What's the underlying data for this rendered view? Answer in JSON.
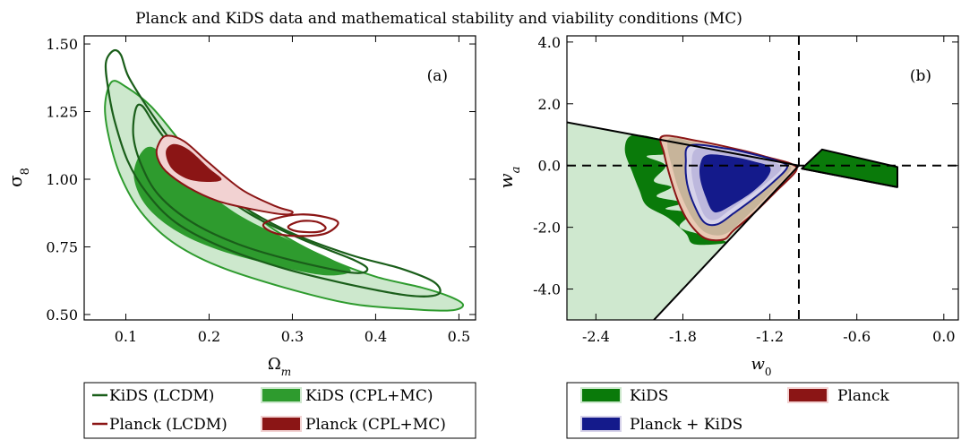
{
  "figure": {
    "title": "Planck and KiDS data and mathematical stability and viability conditions (MC)"
  },
  "colors": {
    "kids_line": "#1a5e1a",
    "kids_fill_light": "#cde8cd",
    "kids_fill_dark": "#2e9b2e",
    "kids_solid": "#0a7a0a",
    "planck_line": "#8b1515",
    "planck_fill_light": "#f2d2d2",
    "planck_fill_dark": "#8b1515",
    "pk_fill_light": "#d7d3ea",
    "pk_fill_dark": "#141a8b",
    "viability_fill": "#cfe8cf"
  },
  "chart_data": [
    {
      "type": "contour",
      "panel_label": "(a)",
      "xlabel": "Ω",
      "xlabel_sub": "m",
      "ylabel": "σ",
      "ylabel_sub": "8",
      "xlim": [
        0.05,
        0.52
      ],
      "ylim": [
        0.48,
        1.53
      ],
      "xticks": [
        0.1,
        0.2,
        0.3,
        0.4,
        0.5
      ],
      "xtick_labels": [
        "0.1",
        "0.2",
        "0.3",
        "0.4",
        "0.5"
      ],
      "yticks": [
        0.5,
        0.75,
        1.0,
        1.25,
        1.5
      ],
      "ytick_labels": [
        "0.50",
        "0.75",
        "1.00",
        "1.25",
        "1.50"
      ],
      "series": [
        {
          "key": "kids_cpl_outer",
          "style": "filled",
          "level": "95%",
          "points": [
            [
              0.083,
              1.36
            ],
            [
              0.101,
              1.34
            ],
            [
              0.13,
              1.27
            ],
            [
              0.16,
              1.16
            ],
            [
              0.19,
              1.04
            ],
            [
              0.23,
              0.93
            ],
            [
              0.28,
              0.81
            ],
            [
              0.34,
              0.71
            ],
            [
              0.4,
              0.64
            ],
            [
              0.455,
              0.6
            ],
            [
              0.49,
              0.565
            ],
            [
              0.505,
              0.535
            ],
            [
              0.49,
              0.515
            ],
            [
              0.44,
              0.52
            ],
            [
              0.37,
              0.54
            ],
            [
              0.29,
              0.6
            ],
            [
              0.21,
              0.68
            ],
            [
              0.155,
              0.77
            ],
            [
              0.118,
              0.88
            ],
            [
              0.094,
              1.01
            ],
            [
              0.08,
              1.15
            ],
            [
              0.075,
              1.27
            ]
          ]
        },
        {
          "key": "kids_cpl_inner",
          "style": "filled",
          "level": "68%",
          "points": [
            [
              0.115,
              1.08
            ],
            [
              0.13,
              1.12
            ],
            [
              0.155,
              1.06
            ],
            [
              0.19,
              0.97
            ],
            [
              0.24,
              0.86
            ],
            [
              0.3,
              0.77
            ],
            [
              0.35,
              0.7
            ],
            [
              0.37,
              0.66
            ],
            [
              0.34,
              0.645
            ],
            [
              0.28,
              0.68
            ],
            [
              0.21,
              0.74
            ],
            [
              0.16,
              0.81
            ],
            [
              0.125,
              0.9
            ],
            [
              0.11,
              1.0
            ]
          ]
        },
        {
          "key": "kids_lcdm_outer",
          "style": "line",
          "level": "95%",
          "points": [
            [
              0.085,
              1.475
            ],
            [
              0.094,
              1.46
            ],
            [
              0.103,
              1.38
            ],
            [
              0.125,
              1.27
            ],
            [
              0.155,
              1.14
            ],
            [
              0.19,
              1.02
            ],
            [
              0.24,
              0.9
            ],
            [
              0.3,
              0.8
            ],
            [
              0.37,
              0.72
            ],
            [
              0.43,
              0.67
            ],
            [
              0.47,
              0.62
            ],
            [
              0.475,
              0.575
            ],
            [
              0.44,
              0.57
            ],
            [
              0.37,
              0.61
            ],
            [
              0.29,
              0.67
            ],
            [
              0.215,
              0.75
            ],
            [
              0.16,
              0.84
            ],
            [
              0.125,
              0.95
            ],
            [
              0.102,
              1.07
            ],
            [
              0.087,
              1.21
            ],
            [
              0.079,
              1.33
            ],
            [
              0.076,
              1.43
            ]
          ]
        },
        {
          "key": "kids_lcdm_inner",
          "style": "line",
          "level": "68%",
          "points": [
            [
              0.112,
              1.26
            ],
            [
              0.12,
              1.27
            ],
            [
              0.135,
              1.2
            ],
            [
              0.16,
              1.1
            ],
            [
              0.2,
              0.98
            ],
            [
              0.25,
              0.87
            ],
            [
              0.31,
              0.78
            ],
            [
              0.375,
              0.7
            ],
            [
              0.39,
              0.665
            ],
            [
              0.37,
              0.655
            ],
            [
              0.3,
              0.7
            ],
            [
              0.235,
              0.76
            ],
            [
              0.18,
              0.84
            ],
            [
              0.14,
              0.94
            ],
            [
              0.119,
              1.05
            ],
            [
              0.109,
              1.16
            ]
          ]
        },
        {
          "key": "planck_cpl_outer",
          "style": "filled",
          "level": "95%",
          "points": [
            [
              0.138,
              1.12
            ],
            [
              0.148,
              1.16
            ],
            [
              0.17,
              1.14
            ],
            [
              0.2,
              1.06
            ],
            [
              0.24,
              0.96
            ],
            [
              0.28,
              0.9
            ],
            [
              0.3,
              0.88
            ],
            [
              0.29,
              0.87
            ],
            [
              0.25,
              0.89
            ],
            [
              0.21,
              0.92
            ],
            [
              0.175,
              0.97
            ],
            [
              0.148,
              1.03
            ],
            [
              0.138,
              1.08
            ]
          ]
        },
        {
          "key": "planck_cpl_inner",
          "style": "filled",
          "level": "68%",
          "points": [
            [
              0.148,
              1.1
            ],
            [
              0.157,
              1.13
            ],
            [
              0.175,
              1.11
            ],
            [
              0.2,
              1.04
            ],
            [
              0.215,
              1.0
            ],
            [
              0.2,
              0.99
            ],
            [
              0.175,
              1.0
            ],
            [
              0.155,
              1.04
            ]
          ]
        },
        {
          "key": "planck_lcdm_outer",
          "style": "line",
          "level": "95%",
          "points": [
            [
              0.265,
              0.83
            ],
            [
              0.28,
              0.855
            ],
            [
              0.31,
              0.87
            ],
            [
              0.34,
              0.86
            ],
            [
              0.355,
              0.838
            ],
            [
              0.34,
              0.8
            ],
            [
              0.31,
              0.79
            ],
            [
              0.28,
              0.8
            ]
          ]
        },
        {
          "key": "planck_lcdm_inner",
          "style": "line",
          "level": "68%",
          "points": [
            [
              0.295,
              0.825
            ],
            [
              0.31,
              0.845
            ],
            [
              0.33,
              0.842
            ],
            [
              0.34,
              0.82
            ],
            [
              0.33,
              0.805
            ],
            [
              0.305,
              0.808
            ]
          ]
        }
      ]
    },
    {
      "type": "contour",
      "panel_label": "(b)",
      "xlabel": "w",
      "xlabel_sub": "0",
      "ylabel": "w",
      "ylabel_sub": "a",
      "xlim": [
        -2.6,
        0.1
      ],
      "ylim": [
        -5.0,
        4.2
      ],
      "xticks": [
        -2.4,
        -1.8,
        -1.2,
        -0.6,
        0.0
      ],
      "xtick_labels": [
        "-2.4",
        "-1.8",
        "-1.2",
        "-0.6",
        "0.0"
      ],
      "yticks": [
        -4.0,
        -2.0,
        0.0,
        2.0,
        4.0
      ],
      "ytick_labels": [
        "-4.0",
        "-2.0",
        "0.0",
        "2.0",
        "4.0"
      ],
      "reference_lines": {
        "vertical_x": -1.0,
        "horizontal_y": 0.0,
        "style": "dashed"
      },
      "series": [
        {
          "key": "viability_region",
          "style": "filled",
          "level": "MC",
          "points": [
            [
              -2.6,
              1.4
            ],
            [
              -1.0,
              0.0
            ],
            [
              -2.0,
              -5.0
            ],
            [
              -2.6,
              -5.0
            ]
          ]
        },
        {
          "key": "kids_wedge",
          "style": "filled",
          "level": "95%",
          "points": [
            [
              -0.98,
              -0.1
            ],
            [
              -0.84,
              0.52
            ],
            [
              -0.32,
              -0.05
            ],
            [
              -0.32,
              -0.7
            ]
          ]
        },
        {
          "key": "kids_left",
          "style": "filled",
          "level": "95%",
          "points": [
            [
              -2.15,
              0.98
            ],
            [
              -1.95,
              0.82
            ],
            [
              -1.9,
              0.4
            ],
            [
              -2.05,
              0.3
            ],
            [
              -1.92,
              0.0
            ],
            [
              -2.0,
              -0.5
            ],
            [
              -1.88,
              -0.7
            ],
            [
              -1.98,
              -1.0
            ],
            [
              -1.8,
              -1.2
            ],
            [
              -1.92,
              -1.4
            ],
            [
              -1.75,
              -1.55
            ],
            [
              -1.82,
              -2.0
            ],
            [
              -1.62,
              -2.3
            ],
            [
              -1.5,
              -2.5
            ],
            [
              -1.72,
              -2.55
            ],
            [
              -1.78,
              -2.2
            ],
            [
              -1.9,
              -1.7
            ],
            [
              -2.05,
              -1.3
            ],
            [
              -2.1,
              -0.8
            ],
            [
              -2.15,
              -0.2
            ],
            [
              -2.2,
              0.5
            ]
          ]
        },
        {
          "key": "planck_cpl_outer",
          "style": "filled",
          "level": "95%",
          "points": [
            [
              -1.94,
              0.95
            ],
            [
              -1.7,
              0.8
            ],
            [
              -1.4,
              0.5
            ],
            [
              -1.2,
              0.25
            ],
            [
              -1.05,
              0.05
            ],
            [
              -1.02,
              -0.18
            ],
            [
              -1.15,
              -0.8
            ],
            [
              -1.3,
              -1.5
            ],
            [
              -1.45,
              -2.1
            ],
            [
              -1.52,
              -2.4
            ],
            [
              -1.65,
              -2.35
            ],
            [
              -1.75,
              -1.9
            ],
            [
              -1.82,
              -1.3
            ],
            [
              -1.88,
              -0.5
            ],
            [
              -1.93,
              0.4
            ]
          ]
        },
        {
          "key": "planck_cpl_inner",
          "style": "filled",
          "level": "68%",
          "points": [
            [
              -1.9,
              0.85
            ],
            [
              -1.7,
              0.72
            ],
            [
              -1.42,
              0.45
            ],
            [
              -1.18,
              0.18
            ],
            [
              -1.06,
              0.0
            ],
            [
              -1.08,
              -0.3
            ],
            [
              -1.2,
              -0.9
            ],
            [
              -1.35,
              -1.6
            ],
            [
              -1.5,
              -2.2
            ],
            [
              -1.63,
              -2.2
            ],
            [
              -1.72,
              -1.8
            ],
            [
              -1.8,
              -1.1
            ],
            [
              -1.86,
              -0.3
            ]
          ]
        },
        {
          "key": "pk_outer",
          "style": "filled",
          "level": "95%",
          "points": [
            [
              -1.75,
              0.65
            ],
            [
              -1.5,
              0.55
            ],
            [
              -1.3,
              0.35
            ],
            [
              -1.15,
              0.15
            ],
            [
              -1.08,
              -0.05
            ],
            [
              -1.18,
              -0.55
            ],
            [
              -1.32,
              -1.1
            ],
            [
              -1.45,
              -1.55
            ],
            [
              -1.56,
              -1.9
            ],
            [
              -1.65,
              -1.85
            ],
            [
              -1.72,
              -1.3
            ],
            [
              -1.77,
              -0.6
            ],
            [
              -1.78,
              0.1
            ]
          ]
        },
        {
          "key": "pk_mid",
          "style": "filled",
          "level": "mid",
          "points": [
            [
              -1.7,
              0.55
            ],
            [
              -1.48,
              0.47
            ],
            [
              -1.3,
              0.3
            ],
            [
              -1.17,
              0.1
            ],
            [
              -1.12,
              -0.1
            ],
            [
              -1.22,
              -0.55
            ],
            [
              -1.36,
              -1.05
            ],
            [
              -1.48,
              -1.45
            ],
            [
              -1.57,
              -1.75
            ],
            [
              -1.64,
              -1.68
            ],
            [
              -1.69,
              -1.2
            ],
            [
              -1.73,
              -0.55
            ],
            [
              -1.74,
              0.05
            ]
          ]
        },
        {
          "key": "pk_inner",
          "style": "filled",
          "level": "68%",
          "points": [
            [
              -1.63,
              0.35
            ],
            [
              -1.45,
              0.28
            ],
            [
              -1.3,
              0.12
            ],
            [
              -1.2,
              -0.05
            ],
            [
              -1.22,
              -0.4
            ],
            [
              -1.32,
              -0.85
            ],
            [
              -1.45,
              -1.25
            ],
            [
              -1.55,
              -1.5
            ],
            [
              -1.6,
              -1.45
            ],
            [
              -1.64,
              -1.05
            ],
            [
              -1.68,
              -0.45
            ],
            [
              -1.68,
              0.05
            ]
          ]
        }
      ]
    }
  ],
  "legend_a": {
    "items": [
      {
        "label": "KiDS (LCDM)"
      },
      {
        "label": "KiDS (CPL+MC)"
      },
      {
        "label": "Planck (LCDM)"
      },
      {
        "label": "Planck (CPL+MC)"
      }
    ]
  },
  "legend_b": {
    "items": [
      {
        "label": "KiDS"
      },
      {
        "label": "Planck"
      },
      {
        "label": "Planck + KiDS"
      }
    ]
  }
}
